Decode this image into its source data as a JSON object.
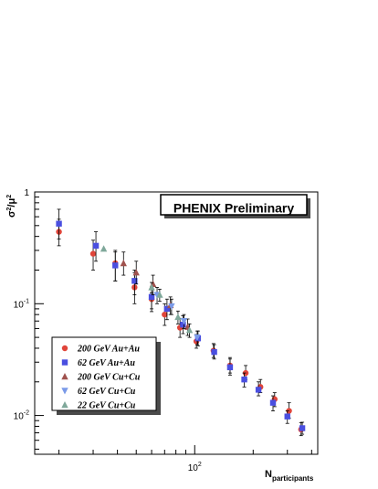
{
  "chart_data": {
    "type": "scatter",
    "banner": "PHENIX Preliminary",
    "xlabel": {
      "main": "N",
      "sub": "participants"
    },
    "ylabel": {
      "main": "σ",
      "sup1": "2",
      "mid": "/μ",
      "sup2": "2"
    },
    "xscale": "log",
    "yscale": "log",
    "xlim": [
      15,
      430
    ],
    "ylim": [
      0.0045,
      1.0
    ],
    "x_ticks": [
      {
        "value": 100,
        "base": "10",
        "exp": "2"
      }
    ],
    "y_ticks": [
      {
        "value": 1.0,
        "base": "1",
        "exp": ""
      },
      {
        "value": 0.1,
        "base": "10",
        "exp": "-1"
      },
      {
        "value": 0.01,
        "base": "10",
        "exp": "-2"
      }
    ],
    "grid": false,
    "legend_position": "bottom-left",
    "series": [
      {
        "name": "200 GeV Au+Au",
        "marker": "circle",
        "color": "#e0453a",
        "points": [
          {
            "x": 20,
            "y": 0.44,
            "elo": 0.33,
            "ehi": 0.57
          },
          {
            "x": 30,
            "y": 0.28,
            "elo": 0.2,
            "ehi": 0.37
          },
          {
            "x": 39,
            "y": 0.23,
            "elo": 0.16,
            "ehi": 0.3
          },
          {
            "x": 49,
            "y": 0.14,
            "elo": 0.1,
            "ehi": 0.19
          },
          {
            "x": 60,
            "y": 0.11,
            "elo": 0.085,
            "ehi": 0.14
          },
          {
            "x": 70,
            "y": 0.08,
            "elo": 0.064,
            "ehi": 0.1
          },
          {
            "x": 84,
            "y": 0.061,
            "elo": 0.05,
            "ehi": 0.074
          },
          {
            "x": 102,
            "y": 0.046,
            "elo": 0.04,
            "ehi": 0.053
          },
          {
            "x": 125,
            "y": 0.038,
            "elo": 0.033,
            "ehi": 0.044
          },
          {
            "x": 152,
            "y": 0.028,
            "elo": 0.024,
            "ehi": 0.033
          },
          {
            "x": 183,
            "y": 0.024,
            "elo": 0.021,
            "ehi": 0.028
          },
          {
            "x": 218,
            "y": 0.018,
            "elo": 0.016,
            "ehi": 0.021
          },
          {
            "x": 258,
            "y": 0.014,
            "elo": 0.012,
            "ehi": 0.016
          },
          {
            "x": 306,
            "y": 0.011,
            "elo": 0.0095,
            "ehi": 0.013
          },
          {
            "x": 353,
            "y": 0.0075,
            "elo": 0.0066,
            "ehi": 0.0086
          }
        ]
      },
      {
        "name": "62 GeV Au+Au",
        "marker": "square",
        "color": "#4a4fe0",
        "points": [
          {
            "x": 20,
            "y": 0.52,
            "elo": 0.38,
            "ehi": 0.7
          },
          {
            "x": 31,
            "y": 0.33,
            "elo": 0.24,
            "ehi": 0.44
          },
          {
            "x": 39,
            "y": 0.22,
            "elo": 0.16,
            "ehi": 0.29
          },
          {
            "x": 49,
            "y": 0.16,
            "elo": 0.12,
            "ehi": 0.2
          },
          {
            "x": 60,
            "y": 0.115,
            "elo": 0.09,
            "ehi": 0.14
          },
          {
            "x": 72,
            "y": 0.09,
            "elo": 0.072,
            "ehi": 0.11
          },
          {
            "x": 87,
            "y": 0.065,
            "elo": 0.054,
            "ehi": 0.078
          },
          {
            "x": 104,
            "y": 0.049,
            "elo": 0.042,
            "ehi": 0.057
          },
          {
            "x": 126,
            "y": 0.037,
            "elo": 0.032,
            "ehi": 0.043
          },
          {
            "x": 152,
            "y": 0.027,
            "elo": 0.023,
            "ehi": 0.032
          },
          {
            "x": 180,
            "y": 0.021,
            "elo": 0.018,
            "ehi": 0.024
          },
          {
            "x": 213,
            "y": 0.017,
            "elo": 0.015,
            "ehi": 0.02
          },
          {
            "x": 253,
            "y": 0.013,
            "elo": 0.011,
            "ehi": 0.015
          },
          {
            "x": 300,
            "y": 0.0098,
            "elo": 0.0085,
            "ehi": 0.011
          },
          {
            "x": 358,
            "y": 0.0077,
            "elo": 0.0068,
            "ehi": 0.0087
          }
        ]
      },
      {
        "name": "200 GeV Cu+Cu",
        "marker": "triangle-up",
        "color": "#a0524e",
        "points": [
          {
            "x": 43,
            "y": 0.23,
            "elo": 0.18,
            "ehi": 0.29
          },
          {
            "x": 50,
            "y": 0.19,
            "elo": 0.15,
            "ehi": 0.24
          },
          {
            "x": 61,
            "y": 0.15,
            "elo": 0.12,
            "ehi": 0.18
          },
          {
            "x": 75,
            "y": 0.097,
            "elo": 0.08,
            "ehi": 0.115
          },
          {
            "x": 92,
            "y": 0.062,
            "elo": 0.052,
            "ehi": 0.073
          }
        ]
      },
      {
        "name": "62 GeV Cu+Cu",
        "marker": "triangle-down",
        "color": "#7a9ae8",
        "points": [
          {
            "x": 64,
            "y": 0.12,
            "elo": 0.1,
            "ehi": 0.14
          },
          {
            "x": 76,
            "y": 0.095,
            "elo": 0.08,
            "ehi": 0.11
          },
          {
            "x": 88,
            "y": 0.07,
            "elo": 0.06,
            "ehi": 0.08
          },
          {
            "x": 103,
            "y": 0.05,
            "elo": 0.043,
            "ehi": 0.057
          }
        ]
      },
      {
        "name": "22 GeV Cu+Cu",
        "marker": "triangle-up",
        "color": "#7fa89a",
        "points": [
          {
            "x": 34,
            "y": 0.31,
            "elo": 0.31,
            "ehi": 0.31
          },
          {
            "x": 60,
            "y": 0.14,
            "elo": 0.125,
            "ehi": 0.155
          },
          {
            "x": 66,
            "y": 0.12,
            "elo": 0.105,
            "ehi": 0.135
          },
          {
            "x": 82,
            "y": 0.076,
            "elo": 0.066,
            "ehi": 0.086
          },
          {
            "x": 94,
            "y": 0.058,
            "elo": 0.05,
            "ehi": 0.066
          }
        ]
      }
    ]
  }
}
